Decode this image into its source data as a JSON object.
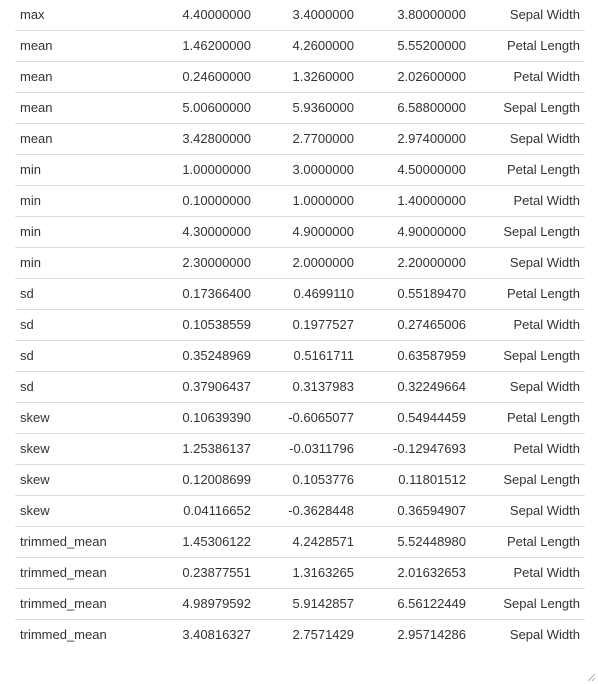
{
  "table": {
    "rows": [
      {
        "stat": "max",
        "v1": "4.40000000",
        "v2": "3.4000000",
        "v3": "3.80000000",
        "variable": "Sepal Width"
      },
      {
        "stat": "mean",
        "v1": "1.46200000",
        "v2": "4.2600000",
        "v3": "5.55200000",
        "variable": "Petal Length"
      },
      {
        "stat": "mean",
        "v1": "0.24600000",
        "v2": "1.3260000",
        "v3": "2.02600000",
        "variable": "Petal Width"
      },
      {
        "stat": "mean",
        "v1": "5.00600000",
        "v2": "5.9360000",
        "v3": "6.58800000",
        "variable": "Sepal Length"
      },
      {
        "stat": "mean",
        "v1": "3.42800000",
        "v2": "2.7700000",
        "v3": "2.97400000",
        "variable": "Sepal Width"
      },
      {
        "stat": "min",
        "v1": "1.00000000",
        "v2": "3.0000000",
        "v3": "4.50000000",
        "variable": "Petal Length"
      },
      {
        "stat": "min",
        "v1": "0.10000000",
        "v2": "1.0000000",
        "v3": "1.40000000",
        "variable": "Petal Width"
      },
      {
        "stat": "min",
        "v1": "4.30000000",
        "v2": "4.9000000",
        "v3": "4.90000000",
        "variable": "Sepal Length"
      },
      {
        "stat": "min",
        "v1": "2.30000000",
        "v2": "2.0000000",
        "v3": "2.20000000",
        "variable": "Sepal Width"
      },
      {
        "stat": "sd",
        "v1": "0.17366400",
        "v2": "0.4699110",
        "v3": "0.55189470",
        "variable": "Petal Length"
      },
      {
        "stat": "sd",
        "v1": "0.10538559",
        "v2": "0.1977527",
        "v3": "0.27465006",
        "variable": "Petal Width"
      },
      {
        "stat": "sd",
        "v1": "0.35248969",
        "v2": "0.5161711",
        "v3": "0.63587959",
        "variable": "Sepal Length"
      },
      {
        "stat": "sd",
        "v1": "0.37906437",
        "v2": "0.3137983",
        "v3": "0.32249664",
        "variable": "Sepal Width"
      },
      {
        "stat": "skew",
        "v1": "0.10639390",
        "v2": "-0.6065077",
        "v3": "0.54944459",
        "variable": "Petal Length"
      },
      {
        "stat": "skew",
        "v1": "1.25386137",
        "v2": "-0.0311796",
        "v3": "-0.12947693",
        "variable": "Petal Width"
      },
      {
        "stat": "skew",
        "v1": "0.12008699",
        "v2": "0.1053776",
        "v3": "0.11801512",
        "variable": "Sepal Length"
      },
      {
        "stat": "skew",
        "v1": "0.04116652",
        "v2": "-0.3628448",
        "v3": "0.36594907",
        "variable": "Sepal Width"
      },
      {
        "stat": "trimmed_mean",
        "v1": "1.45306122",
        "v2": "4.2428571",
        "v3": "5.52448980",
        "variable": "Petal Length"
      },
      {
        "stat": "trimmed_mean",
        "v1": "0.23877551",
        "v2": "1.3163265",
        "v3": "2.01632653",
        "variable": "Petal Width"
      },
      {
        "stat": "trimmed_mean",
        "v1": "4.98979592",
        "v2": "5.9142857",
        "v3": "6.56122449",
        "variable": "Sepal Length"
      },
      {
        "stat": "trimmed_mean",
        "v1": "3.40816327",
        "v2": "2.7571429",
        "v3": "2.95714286",
        "variable": "Sepal Width"
      }
    ]
  },
  "icons": {
    "resize_grip": "resize-grip-icon"
  },
  "colors": {
    "text": "#333333",
    "row_border": "#dddddd",
    "background": "#ffffff"
  }
}
